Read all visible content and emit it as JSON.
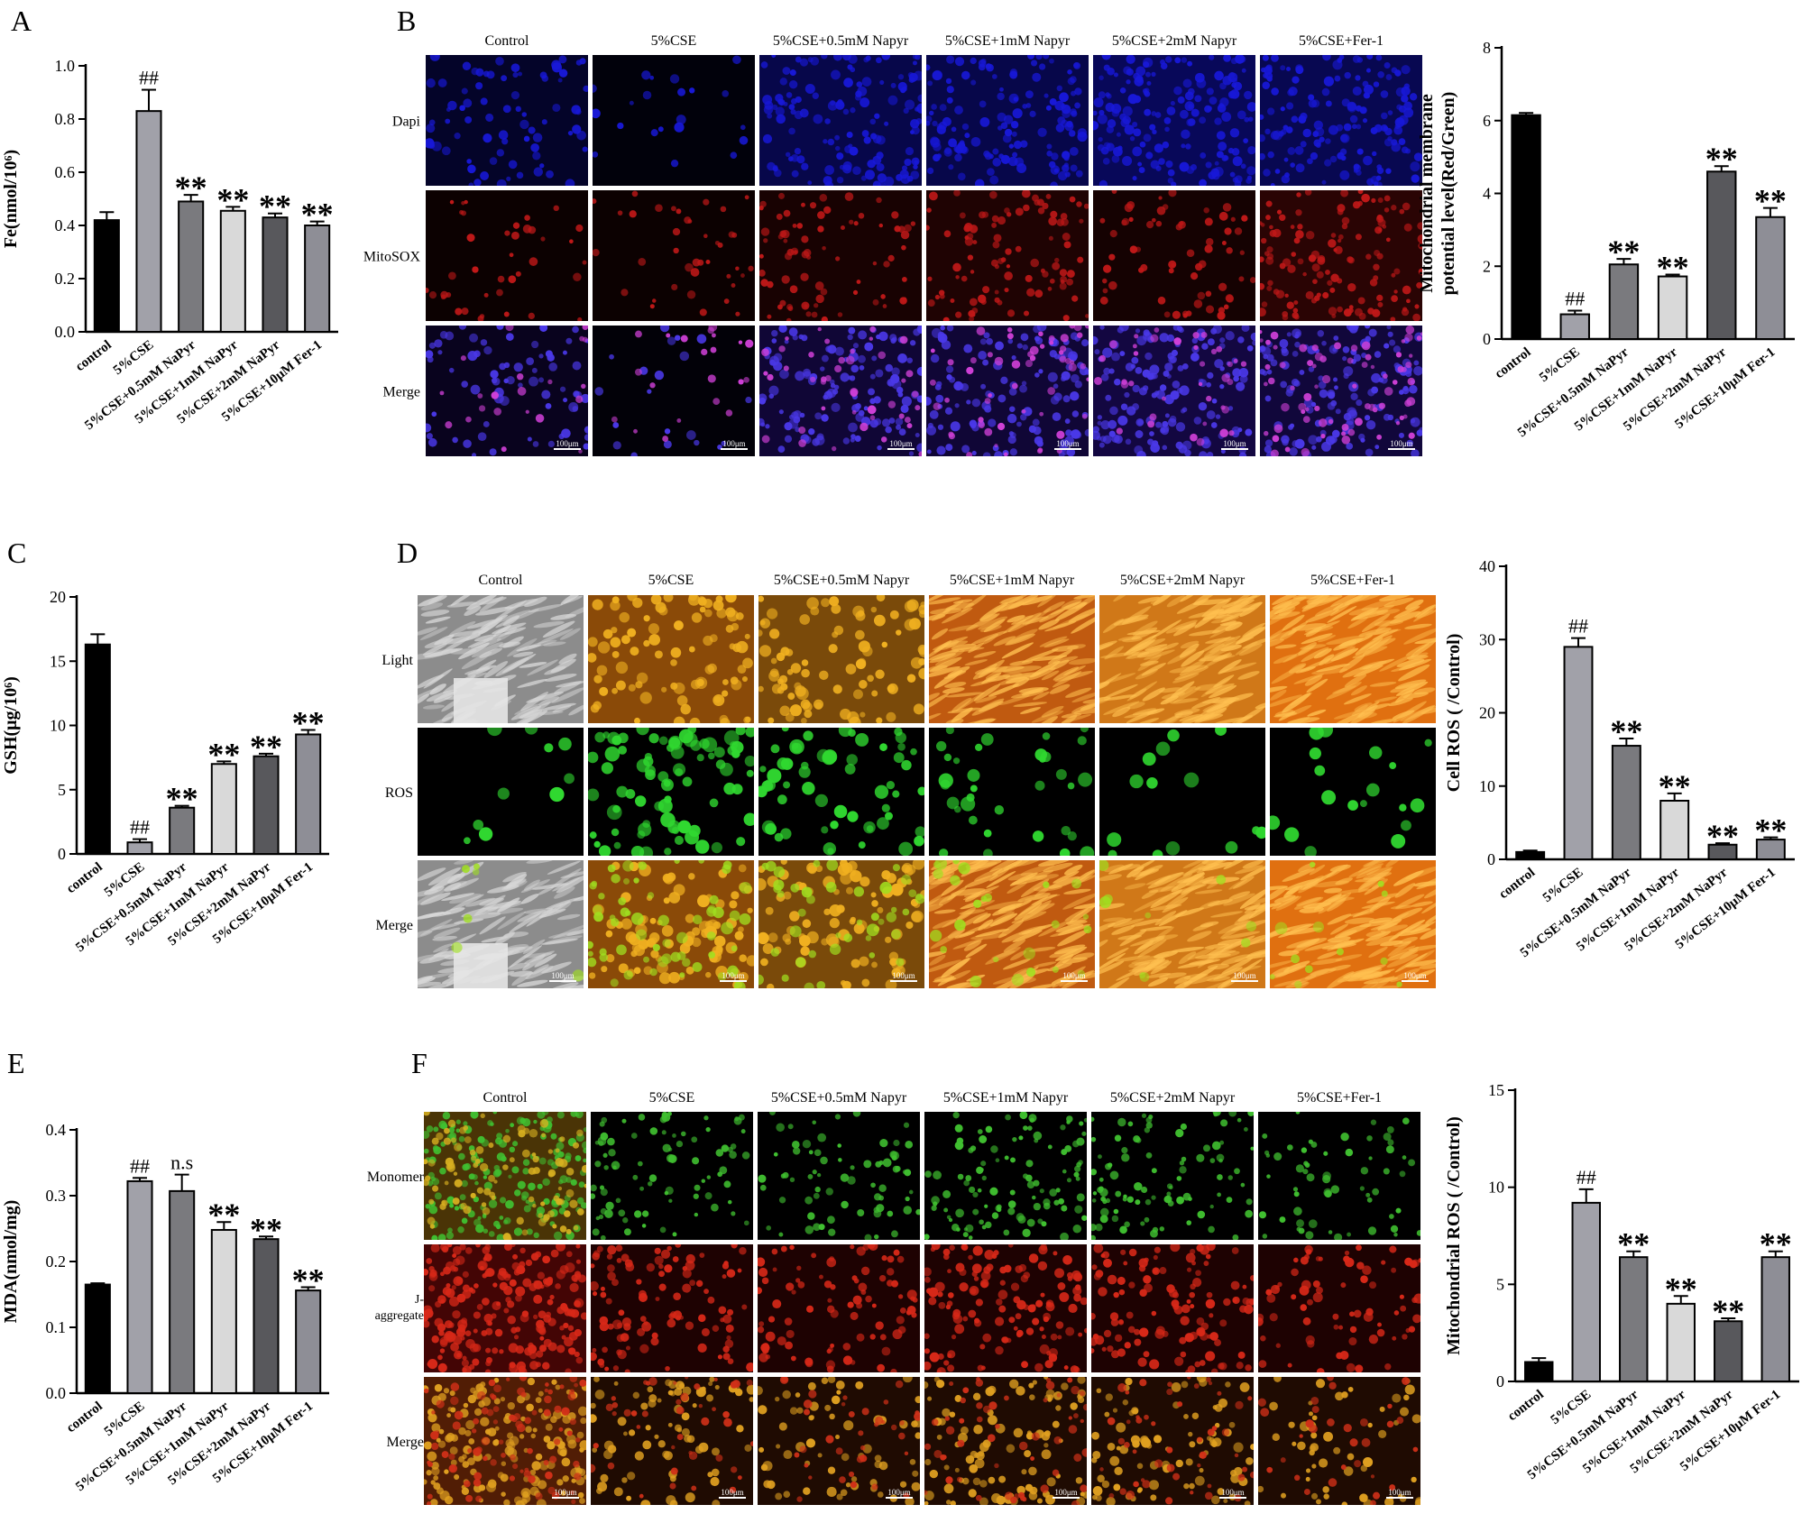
{
  "panel_letters": [
    "A",
    "B",
    "C",
    "D",
    "E",
    "F"
  ],
  "micro_B": {
    "columns": [
      "Control",
      "5%CSE",
      "5%CSE+0.5mM Napyr",
      "5%CSE+1mM Napyr",
      "5%CSE+2mM Napyr",
      "5%CSE+Fer-1"
    ],
    "rows": [
      "Dapi",
      "MitoSOX",
      "Merge"
    ],
    "scale": "100μm"
  },
  "micro_D": {
    "columns": [
      "Control",
      "5%CSE",
      "5%CSE+0.5mM Napyr",
      "5%CSE+1mM Napyr",
      "5%CSE+2mM Napyr",
      "5%CSE+Fer-1"
    ],
    "rows": [
      "Light",
      "ROS",
      "Merge"
    ],
    "scale": "100μm"
  },
  "micro_F": {
    "columns": [
      "Control",
      "5%CSE",
      "5%CSE+0.5mM Napyr",
      "5%CSE+1mM Napyr",
      "5%CSE+2mM Napyr",
      "5%CSE+Fer-1"
    ],
    "rows": [
      "Monomer",
      "J-aggregate",
      "Merge"
    ],
    "scale": "100μm"
  },
  "colors": {
    "bars": [
      "#000000",
      "#a1a1a9",
      "#7a7a7e",
      "#d9d9d9",
      "#58585c",
      "#8e8e96"
    ],
    "dapi": "#1818d8",
    "mitosox": "#c01818",
    "merge_b": "#8a38e8",
    "ros": "#30d830",
    "orange": "#e07818",
    "monomer": "#40c030",
    "jagg": "#d82818"
  },
  "chart_data": [
    {
      "id": "A",
      "type": "bar",
      "categories": [
        "control",
        "5%CSE",
        "5%CSE+0.5mM NaPyr",
        "5%CSE+1mM NaPyr",
        "5%CSE+2mM NaPyr",
        "5%CSE+10μM Fer-1"
      ],
      "values": [
        0.42,
        0.83,
        0.49,
        0.455,
        0.43,
        0.4
      ],
      "errors": [
        0.03,
        0.08,
        0.025,
        0.015,
        0.015,
        0.015
      ],
      "annotations": [
        "",
        "##",
        "**",
        "**",
        "**",
        "**"
      ],
      "ylabel": "Fe(nmol/10⁶)",
      "ylim": [
        0,
        1.0
      ],
      "yticks": [
        "0.0",
        "0.2",
        "0.4",
        "0.6",
        "0.8",
        "1.0"
      ]
    },
    {
      "id": "B",
      "type": "bar",
      "categories": [
        "control",
        "5%CSE",
        "5%CSE+0.5mM NaPyr",
        "5%CSE+1mM NaPyr",
        "5%CSE+2mM NaPyr",
        "5%CSE+10μM Fer-1"
      ],
      "values": [
        6.15,
        0.68,
        2.05,
        1.72,
        4.6,
        3.35
      ],
      "errors": [
        0.06,
        0.1,
        0.15,
        0.05,
        0.15,
        0.25
      ],
      "annotations": [
        "",
        "##",
        "**",
        "**",
        "**",
        "**"
      ],
      "ylabel": "Mitochondrial membrane potential level(Red/Green)",
      "ylim": [
        0,
        8
      ],
      "yticks": [
        "0",
        "2",
        "4",
        "6",
        "8"
      ]
    },
    {
      "id": "C",
      "type": "bar",
      "categories": [
        "control",
        "5%CSE",
        "5%CSE+0.5mM NaPyr",
        "5%CSE+1mM NaPyr",
        "5%CSE+2mM NaPyr",
        "5%CSE+10μM Fer-1"
      ],
      "values": [
        16.3,
        0.9,
        3.6,
        7.0,
        7.6,
        9.3
      ],
      "errors": [
        0.8,
        0.25,
        0.15,
        0.2,
        0.2,
        0.35
      ],
      "annotations": [
        "",
        "##",
        "**",
        "**",
        "**",
        "**"
      ],
      "ylabel": "GSH(μg/10⁶)",
      "ylim": [
        0,
        20
      ],
      "yticks": [
        "0",
        "5",
        "10",
        "15",
        "20"
      ]
    },
    {
      "id": "D",
      "type": "bar",
      "categories": [
        "control",
        "5%CSE",
        "5%CSE+0.5mM NaPyr",
        "5%CSE+1mM NaPyr",
        "5%CSE+2mM NaPyr",
        "5%CSE+10μM Fer-1"
      ],
      "values": [
        1.0,
        29.0,
        15.5,
        8.0,
        2.0,
        2.7
      ],
      "errors": [
        0.2,
        1.2,
        1.0,
        1.0,
        0.2,
        0.3
      ],
      "annotations": [
        "",
        "##",
        "**",
        "**",
        "**",
        "**"
      ],
      "ylabel": "Cell ROS ( /Control)",
      "ylim": [
        0,
        40
      ],
      "yticks": [
        "0",
        "10",
        "20",
        "30",
        "40"
      ]
    },
    {
      "id": "E",
      "type": "bar",
      "categories": [
        "control",
        "5%CSE",
        "5%CSE+0.5mM NaPyr",
        "5%CSE+1mM NaPyr",
        "5%CSE+2mM NaPyr",
        "5%CSE+10μM Fer-1"
      ],
      "values": [
        0.165,
        0.322,
        0.307,
        0.248,
        0.234,
        0.156
      ],
      "errors": [
        0.002,
        0.005,
        0.025,
        0.012,
        0.004,
        0.005
      ],
      "annotations": [
        "",
        "##",
        "n.s",
        "**",
        "**",
        "**"
      ],
      "ylabel": "MDA(nmol/mg)",
      "ylim": [
        0,
        0.4
      ],
      "yticks": [
        "0.0",
        "0.1",
        "0.2",
        "0.3",
        "0.4"
      ]
    },
    {
      "id": "F",
      "type": "bar",
      "categories": [
        "control",
        "5%CSE",
        "5%CSE+0.5mM NaPyr",
        "5%CSE+1mM NaPyr",
        "5%CSE+2mM NaPyr",
        "5%CSE+10μM Fer-1"
      ],
      "values": [
        1.0,
        9.2,
        6.4,
        4.0,
        3.1,
        6.4
      ],
      "errors": [
        0.2,
        0.7,
        0.3,
        0.4,
        0.15,
        0.3
      ],
      "annotations": [
        "",
        "##",
        "**",
        "**",
        "**",
        "**"
      ],
      "ylabel": "Mitochondrial ROS ( /Control)",
      "ylim": [
        0,
        15
      ],
      "yticks": [
        "0",
        "5",
        "10",
        "15"
      ]
    }
  ]
}
